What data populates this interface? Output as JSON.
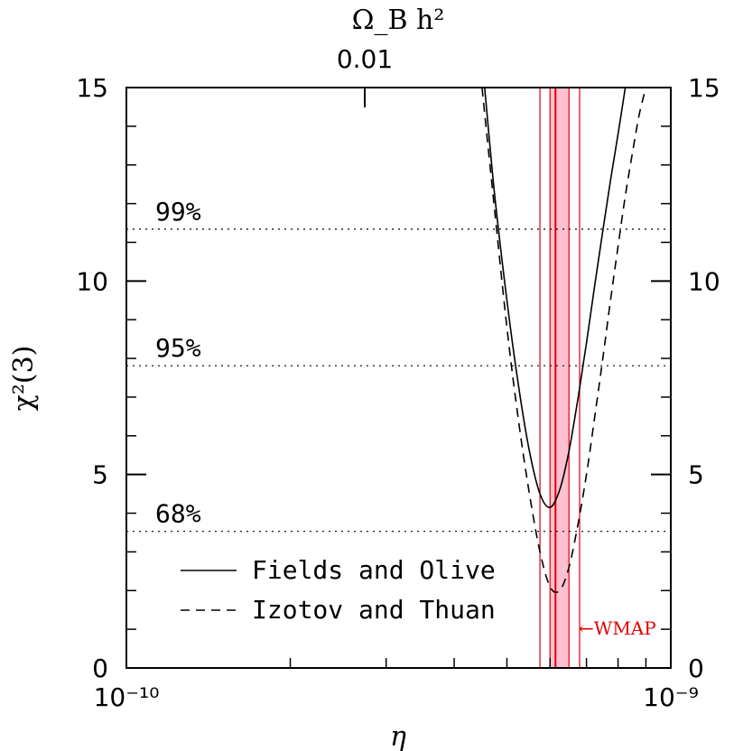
{
  "chart_data": {
    "type": "line",
    "xscale": "log",
    "xlim": [
      1e-10,
      1e-09
    ],
    "ylim": [
      0,
      15
    ],
    "xlabel": "η",
    "ylabel": "χ²(3)",
    "top_axis_label": "Ω_B h²",
    "top_axis_tick": "0.01",
    "x_tick_labels": [
      "10⁻¹⁰",
      "10⁻⁹"
    ],
    "y_ticks": [
      0,
      5,
      10,
      15
    ],
    "y_tick_labels": [
      "0",
      "5",
      "10",
      "15"
    ],
    "confidence_levels": [
      {
        "label": "68%",
        "value": 3.53
      },
      {
        "label": "95%",
        "value": 7.81
      },
      {
        "label": "99%",
        "value": 11.34
      }
    ],
    "wmap_band": {
      "label": "←WMAP",
      "center": 6.14e-10,
      "inner": [
        6e-10,
        6.5e-10
      ],
      "outer": [
        5.75e-10,
        6.8e-10
      ],
      "color": "#e00000",
      "fill": "#ffc0d0"
    },
    "series": [
      {
        "name": "Fields and Olive",
        "style": "solid",
        "x": [
          4.55e-10,
          4.75e-10,
          5e-10,
          5.25e-10,
          5.5e-10,
          5.75e-10,
          6e-10,
          6.25e-10,
          6.5e-10,
          6.75e-10,
          7e-10,
          7.25e-10,
          7.5e-10,
          7.75e-10,
          8e-10,
          8.25e-10
        ],
        "y": [
          15.0,
          12.2,
          9.5,
          7.3,
          5.6,
          4.5,
          4.15,
          4.6,
          5.6,
          6.95,
          8.4,
          9.9,
          11.3,
          12.6,
          13.8,
          15.0
        ]
      },
      {
        "name": "Izotov and Thuan",
        "style": "dashed",
        "x": [
          4.5e-10,
          4.75e-10,
          5e-10,
          5.25e-10,
          5.5e-10,
          5.75e-10,
          6e-10,
          6.25e-10,
          6.5e-10,
          6.75e-10,
          7e-10,
          7.25e-10,
          7.5e-10,
          7.75e-10,
          8e-10,
          8.25e-10,
          8.5e-10,
          8.75e-10,
          9e-10
        ],
        "y": [
          15.0,
          11.8,
          8.8,
          6.4,
          4.5,
          3.0,
          2.1,
          2.0,
          2.6,
          3.7,
          5.0,
          6.5,
          8.0,
          9.5,
          10.9,
          12.2,
          13.3,
          14.3,
          15.0
        ]
      }
    ]
  }
}
